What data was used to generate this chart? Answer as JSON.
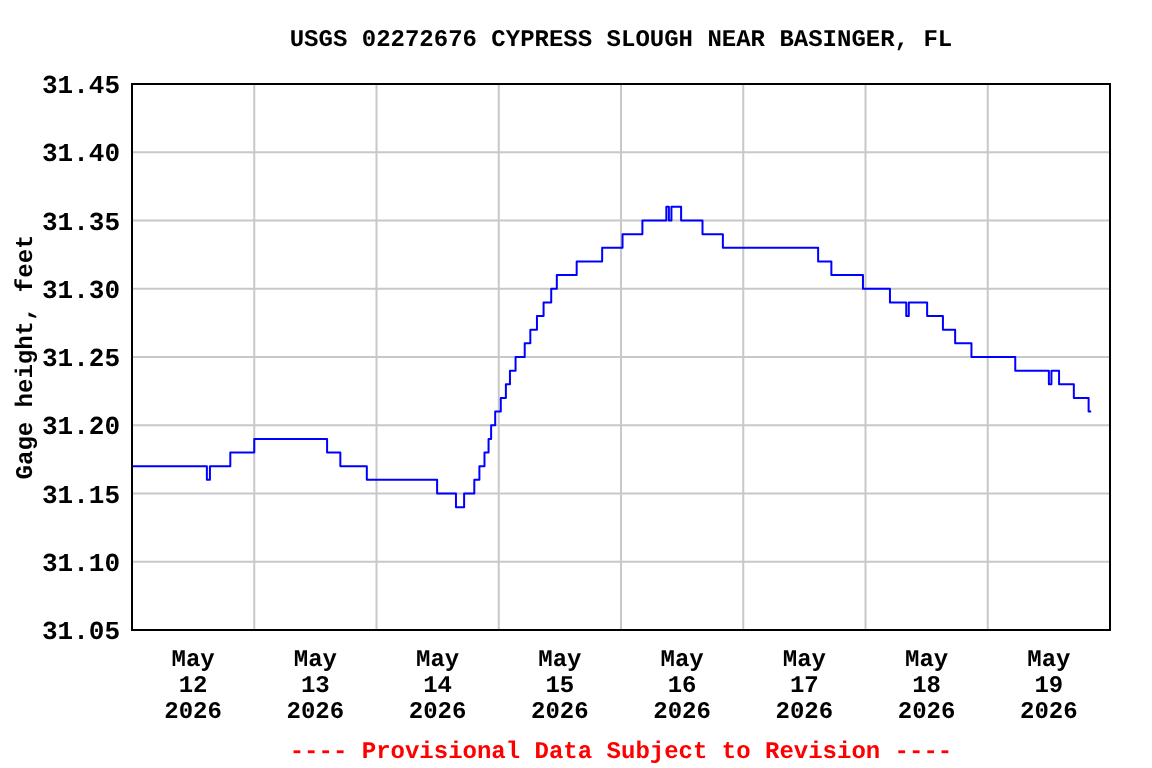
{
  "chart_data": {
    "type": "step",
    "title": "USGS 02272676 CYPRESS SLOUGH NEAR BASINGER, FL",
    "ylabel": "Gage height, feet",
    "annotations": [
      "---- Provisional Data Subject to Revision ----"
    ],
    "x": [
      "2026-05-12T00:00",
      "2026-05-12T14:42",
      "2026-05-12T15:18",
      "2026-05-12T19:18",
      "2026-05-13T00:00",
      "2026-05-13T14:18",
      "2026-05-13T16:54",
      "2026-05-13T22:06",
      "2026-05-14T11:54",
      "2026-05-14T15:36",
      "2026-05-14T17:12",
      "2026-05-14T19:12",
      "2026-05-14T20:12",
      "2026-05-14T21:12",
      "2026-05-14T22:00",
      "2026-05-14T22:30",
      "2026-05-14T23:18",
      "2026-05-15T00:24",
      "2026-05-15T01:24",
      "2026-05-15T02:12",
      "2026-05-15T03:18",
      "2026-05-15T05:06",
      "2026-05-15T06:12",
      "2026-05-15T07:30",
      "2026-05-15T08:48",
      "2026-05-15T10:18",
      "2026-05-15T11:24",
      "2026-05-15T15:18",
      "2026-05-15T20:18",
      "2026-05-16T00:18",
      "2026-05-16T04:12",
      "2026-05-16T08:54",
      "2026-05-16T09:24",
      "2026-05-16T09:54",
      "2026-05-16T11:48",
      "2026-05-16T16:00",
      "2026-05-16T20:00",
      "2026-05-17T14:42",
      "2026-05-17T17:18",
      "2026-05-17T23:30",
      "2026-05-18T04:48",
      "2026-05-18T08:00",
      "2026-05-18T08:30",
      "2026-05-18T12:06",
      "2026-05-18T15:12",
      "2026-05-18T17:36",
      "2026-05-18T20:48",
      "2026-05-19T05:24",
      "2026-05-19T12:00",
      "2026-05-19T12:30",
      "2026-05-19T14:00",
      "2026-05-19T16:54",
      "2026-05-19T19:48",
      "2026-05-19T20:18"
    ],
    "series": [
      {
        "color": "#0000ff",
        "values": [
          31.17,
          31.16,
          31.17,
          31.18,
          31.19,
          31.18,
          31.17,
          31.16,
          31.15,
          31.14,
          31.15,
          31.16,
          31.17,
          31.18,
          31.19,
          31.2,
          31.21,
          31.22,
          31.23,
          31.24,
          31.25,
          31.26,
          31.27,
          31.28,
          31.29,
          31.3,
          31.31,
          31.32,
          31.33,
          31.34,
          31.35,
          31.36,
          31.35,
          31.36,
          31.35,
          31.34,
          31.33,
          31.32,
          31.31,
          31.3,
          31.29,
          31.28,
          31.29,
          31.28,
          31.27,
          31.26,
          31.25,
          31.24,
          31.23,
          31.24,
          31.23,
          31.22,
          31.21,
          31.21
        ]
      }
    ],
    "xlim": [
      "2026-05-12T00:00",
      "2026-05-20T00:00"
    ],
    "xticks": [
      {
        "value": "2026-05-12T12:00",
        "label": "May\n12\n2026"
      },
      {
        "value": "2026-05-13T12:00",
        "label": "May\n13\n2026"
      },
      {
        "value": "2026-05-14T12:00",
        "label": "May\n14\n2026"
      },
      {
        "value": "2026-05-15T12:00",
        "label": "May\n15\n2026"
      },
      {
        "value": "2026-05-16T12:00",
        "label": "May\n16\n2026"
      },
      {
        "value": "2026-05-17T12:00",
        "label": "May\n17\n2026"
      },
      {
        "value": "2026-05-18T12:00",
        "label": "May\n18\n2026"
      },
      {
        "value": "2026-05-19T12:00",
        "label": "May\n19\n2026"
      },
      {
        "value": "2026-05-13T00:00",
        "label": null
      },
      {
        "value": "2026-05-14T00:00",
        "label": null
      },
      {
        "value": "2026-05-15T00:00",
        "label": null
      },
      {
        "value": "2026-05-16T00:00",
        "label": null
      },
      {
        "value": "2026-05-17T00:00",
        "label": null
      },
      {
        "value": "2026-05-18T00:00",
        "label": null
      },
      {
        "value": "2026-05-19T00:00",
        "label": null
      }
    ],
    "ylim": [
      31.05,
      31.45
    ],
    "yticks": [
      {
        "value": 31.05,
        "label": "31.05"
      },
      {
        "value": 31.1,
        "label": "31.10"
      },
      {
        "value": 31.15,
        "label": "31.15"
      },
      {
        "value": 31.2,
        "label": "31.20"
      },
      {
        "value": 31.25,
        "label": "31.25"
      },
      {
        "value": 31.3,
        "label": "31.30"
      },
      {
        "value": 31.35,
        "label": "31.35"
      },
      {
        "value": 31.4,
        "label": "31.40"
      },
      {
        "value": 31.45,
        "label": "31.45"
      }
    ],
    "grid": true
  }
}
